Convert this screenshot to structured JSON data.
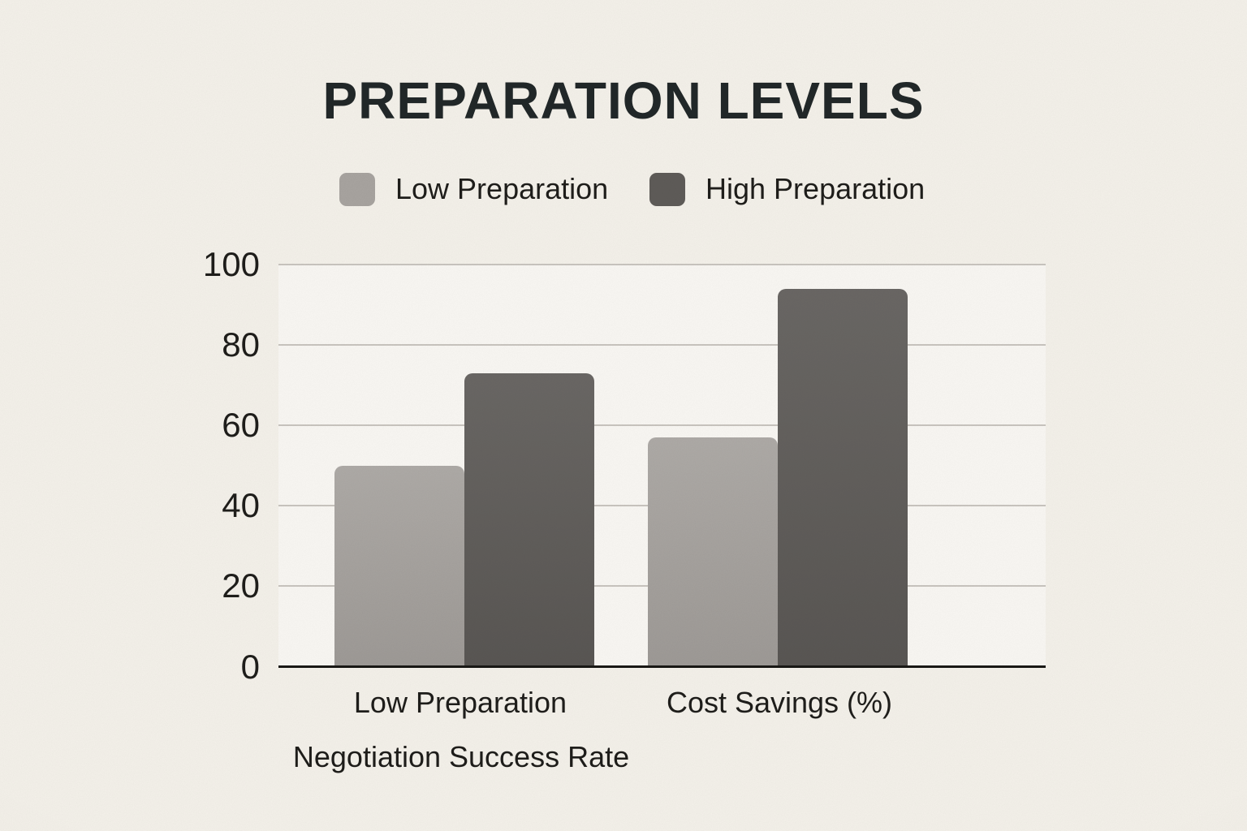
{
  "title": "PREPARATION LEVELS",
  "chart_data": {
    "type": "bar",
    "title": "PREPARATION LEVELS",
    "categories": [
      "Low Preparation",
      "Cost Savings (%)"
    ],
    "series": [
      {
        "name": "Low Preparation",
        "color": "#a8a4a0",
        "values": [
          50,
          57
        ]
      },
      {
        "name": "High Preparation",
        "color": "#5f5c59",
        "values": [
          73,
          94
        ]
      }
    ],
    "xlabel": "Negotiation Success Rate",
    "ylabel": "",
    "ylim": [
      0,
      100
    ],
    "yticks": [
      0,
      20,
      40,
      60,
      80,
      100
    ],
    "grid": true,
    "legend_position": "top"
  },
  "colors": {
    "background": "#f4f1ea",
    "plot_background": "#f8f5f0",
    "gridline": "#c9c5bf",
    "axis": "#1a1916",
    "text": "#1f1e1b",
    "title": "#222829"
  }
}
